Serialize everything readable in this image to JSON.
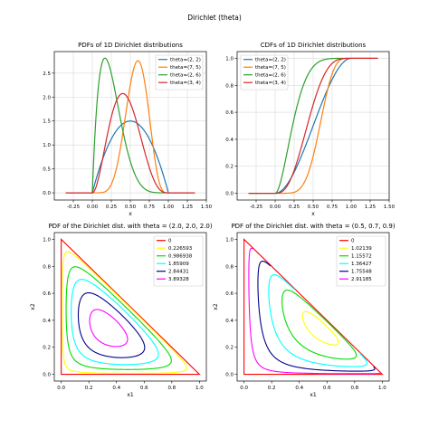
{
  "figure": {
    "suptitle": "Dirichlet (theta)"
  },
  "chart_data": [
    {
      "type": "line",
      "title": "PDFs of 1D Dirichlet distributions",
      "xlabel": "x",
      "ylabel": "",
      "xlim": [
        -0.5,
        1.5
      ],
      "ylim": [
        -0.15,
        2.95
      ],
      "xticks": [
        "-0.25",
        "0.00",
        "0.25",
        "0.50",
        "0.75",
        "1.00",
        "1.25",
        "1.50"
      ],
      "yticks": [
        "0.0",
        "0.5",
        "1.0",
        "1.5",
        "2.0",
        "2.5"
      ],
      "grid": true,
      "legend": "top-right",
      "series": [
        {
          "name": "theta=(2, 2)",
          "color": "#1f77b4",
          "a": 2,
          "b": 2
        },
        {
          "name": "theta=(7, 5)",
          "color": "#ff7f0e",
          "a": 7,
          "b": 5
        },
        {
          "name": "theta=(2, 6)",
          "color": "#2ca02c",
          "a": 2,
          "b": 6
        },
        {
          "name": "theta=(3, 4)",
          "color": "#d62728",
          "a": 3,
          "b": 4
        }
      ]
    },
    {
      "type": "line",
      "title": "CDFs of 1D Dirichlet distributions",
      "xlabel": "x",
      "ylabel": "",
      "xlim": [
        -0.5,
        1.5
      ],
      "ylim": [
        -0.05,
        1.05
      ],
      "xticks": [
        "-0.25",
        "0.00",
        "0.25",
        "0.50",
        "0.75",
        "1.00",
        "1.25",
        "1.50"
      ],
      "yticks": [
        "0.0",
        "0.2",
        "0.4",
        "0.6",
        "0.8",
        "1.0"
      ],
      "grid": true,
      "legend": "top-left",
      "series": [
        {
          "name": "theta=(2, 2)",
          "color": "#1f77b4",
          "a": 2,
          "b": 2
        },
        {
          "name": "theta=(7, 5)",
          "color": "#ff7f0e",
          "a": 7,
          "b": 5
        },
        {
          "name": "theta=(2, 6)",
          "color": "#2ca02c",
          "a": 2,
          "b": 6
        },
        {
          "name": "theta=(3, 4)",
          "color": "#d62728",
          "a": 3,
          "b": 4
        }
      ]
    },
    {
      "type": "contour",
      "title": "PDF of the Dirichlet dist. with theta = (2.0, 2.0, 2.0)",
      "xlabel": "x1",
      "ylabel": "x2",
      "xlim": [
        -0.05,
        1.05
      ],
      "ylim": [
        -0.05,
        1.05
      ],
      "xticks": [
        "0.0",
        "0.2",
        "0.4",
        "0.6",
        "0.8",
        "1.0"
      ],
      "yticks": [
        "0.0",
        "0.2",
        "0.4",
        "0.6",
        "0.8",
        "1.0"
      ],
      "grid": false,
      "legend": "top-right",
      "theta": [
        2.0,
        2.0,
        2.0
      ],
      "levels": [
        {
          "label": "0",
          "value": 0,
          "color": "#ff0000"
        },
        {
          "label": "0.226593",
          "value": 0.226593,
          "color": "#ffff00"
        },
        {
          "label": "0.986938",
          "value": 0.986938,
          "color": "#00dd00"
        },
        {
          "label": "1.85909",
          "value": 1.85909,
          "color": "#00ffff"
        },
        {
          "label": "2.84431",
          "value": 2.84431,
          "color": "#00008b"
        },
        {
          "label": "3.89328",
          "value": 3.89328,
          "color": "#ff00ff"
        }
      ]
    },
    {
      "type": "contour",
      "title": "PDF of the Dirichlet dist. with theta = (0.5, 0.7, 0.9)",
      "xlabel": "x1",
      "ylabel": "x2",
      "xlim": [
        -0.05,
        1.05
      ],
      "ylim": [
        -0.05,
        1.05
      ],
      "xticks": [
        "0.0",
        "0.2",
        "0.4",
        "0.6",
        "0.8",
        "1.0"
      ],
      "yticks": [
        "0.0",
        "0.2",
        "0.4",
        "0.6",
        "0.8",
        "1.0"
      ],
      "grid": false,
      "legend": "top-right",
      "theta": [
        0.5,
        0.7,
        0.9
      ],
      "levels": [
        {
          "label": "0",
          "value": 0,
          "color": "#ff0000"
        },
        {
          "label": "1.02139",
          "value": 1.02139,
          "color": "#ffff00"
        },
        {
          "label": "1.15572",
          "value": 1.15572,
          "color": "#00dd00"
        },
        {
          "label": "1.36427",
          "value": 1.36427,
          "color": "#00ffff"
        },
        {
          "label": "1.75548",
          "value": 1.75548,
          "color": "#00008b"
        },
        {
          "label": "2.91185",
          "value": 2.91185,
          "color": "#ff00ff"
        }
      ]
    }
  ]
}
